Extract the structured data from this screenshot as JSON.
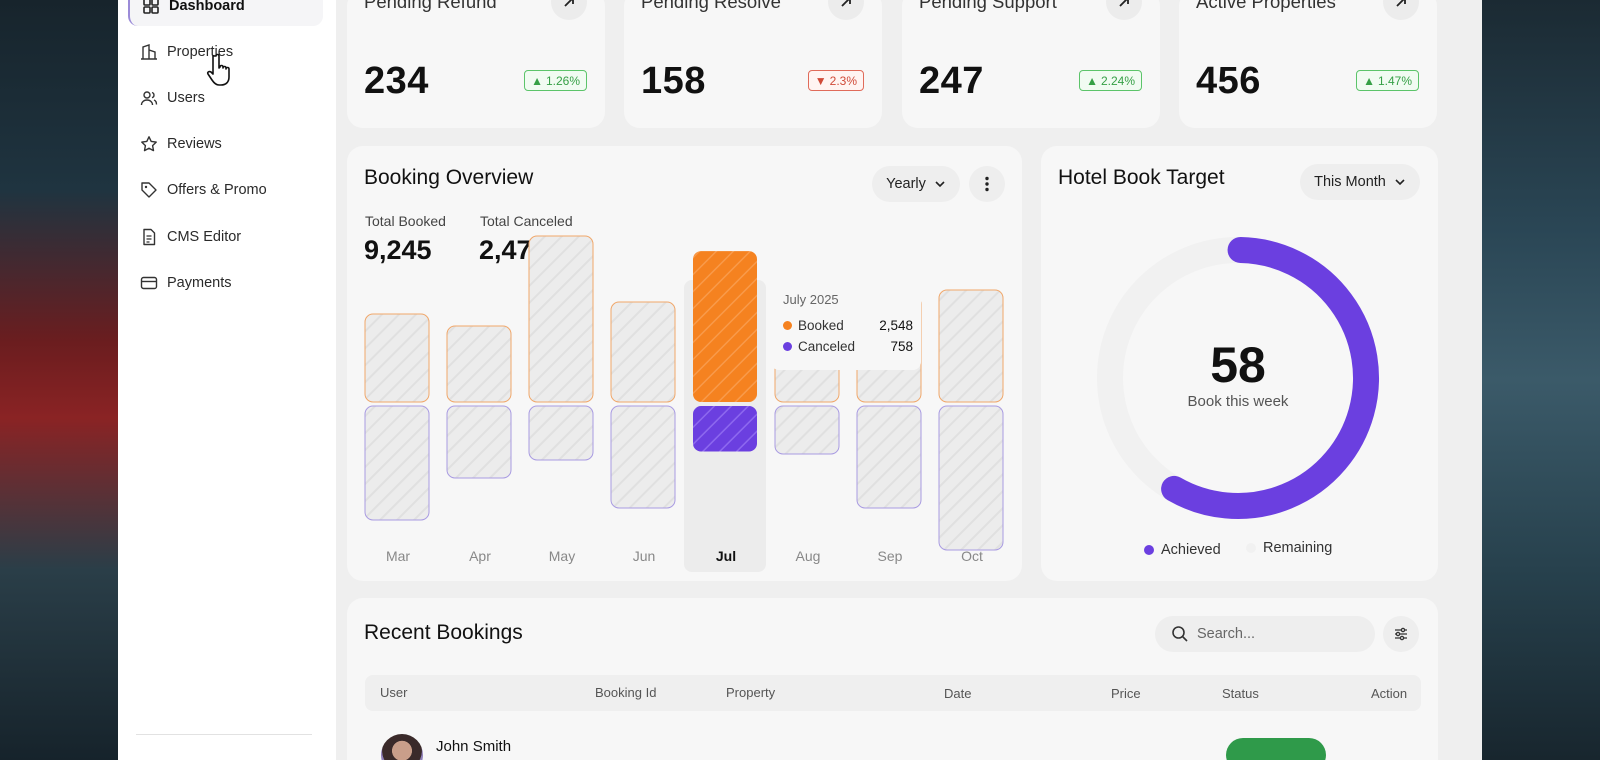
{
  "sidebar": {
    "items": [
      {
        "label": "Dashboard",
        "icon": "grid-icon",
        "active": true
      },
      {
        "label": "Properties",
        "icon": "building-icon"
      },
      {
        "label": "Users",
        "icon": "users-icon"
      },
      {
        "label": "Reviews",
        "icon": "star-icon"
      },
      {
        "label": "Offers & Promo",
        "icon": "tag-icon"
      },
      {
        "label": "CMS Editor",
        "icon": "document-icon"
      },
      {
        "label": "Payments",
        "icon": "card-icon"
      }
    ]
  },
  "stats": [
    {
      "title": "Pending Refund",
      "value": "234",
      "change": "1.26%",
      "trend": "up"
    },
    {
      "title": "Pending Resolve",
      "value": "158",
      "change": "2.3%",
      "trend": "down"
    },
    {
      "title": "Pending Support",
      "value": "247",
      "change": "2.24%",
      "trend": "up"
    },
    {
      "title": "Active Properties",
      "value": "456",
      "change": "1.47%",
      "trend": "up"
    }
  ],
  "booking_overview": {
    "title": "Booking Overview",
    "period": "Yearly",
    "total_booked_label": "Total Booked",
    "total_booked": "9,245",
    "total_canceled_label": "Total Canceled",
    "total_canceled": "2,478",
    "tooltip": {
      "date": "July 2025",
      "booked_label": "Booked",
      "booked_value": "2,548",
      "canceled_label": "Canceled",
      "canceled_value": "758"
    }
  },
  "chart_data": {
    "type": "bar",
    "categories": [
      "Mar",
      "Apr",
      "May",
      "Jun",
      "Jul",
      "Aug",
      "Sep",
      "Oct"
    ],
    "series": [
      {
        "name": "Booked",
        "values": [
          1500,
          1300,
          2800,
          1700,
          2548,
          1200,
          1800,
          1900
        ]
      },
      {
        "name": "Canceled",
        "values": [
          1900,
          1200,
          900,
          1700,
          758,
          800,
          1700,
          2400
        ]
      }
    ],
    "highlighted": "Jul",
    "colors": {
      "booked": "#f58220",
      "canceled": "#6b3fe0",
      "inactive": "#ececec"
    }
  },
  "hotel_target": {
    "title": "Hotel Book Target",
    "period": "This Month",
    "value": "58",
    "caption": "Book this week",
    "achieved_fraction": 0.58,
    "legend_achieved": "Achieved",
    "legend_remaining": "Remaining",
    "color_achieved": "#6b3fe0",
    "color_remaining": "#f1f1f1"
  },
  "recent_bookings": {
    "title": "Recent Bookings",
    "search_placeholder": "Search...",
    "columns": [
      "User",
      "Booking Id",
      "Property",
      "Date",
      "Price",
      "Status",
      "Action"
    ],
    "rows": [
      {
        "user": "John Smith"
      }
    ]
  }
}
